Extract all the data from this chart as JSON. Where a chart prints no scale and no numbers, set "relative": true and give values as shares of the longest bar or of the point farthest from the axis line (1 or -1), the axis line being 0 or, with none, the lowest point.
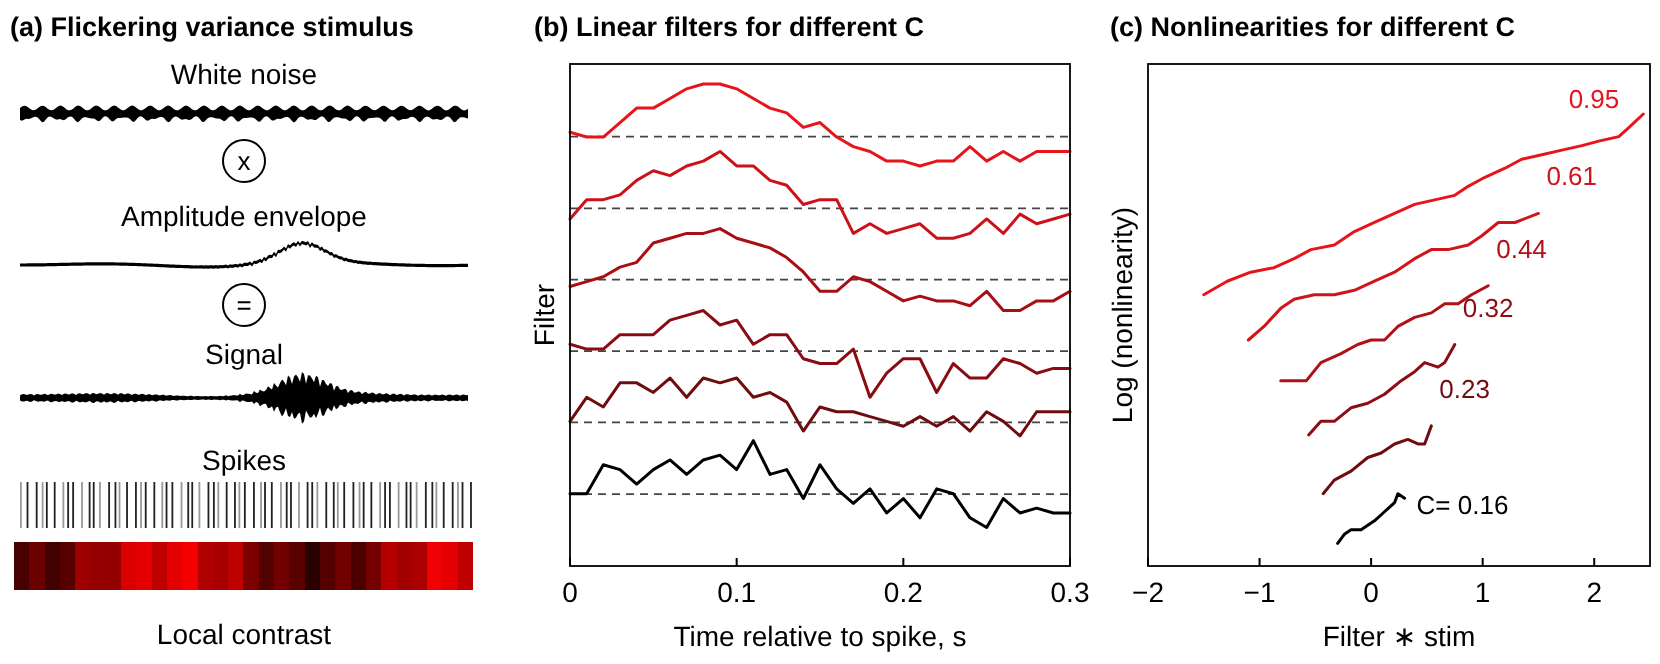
{
  "chart_data": [
    {
      "type": "other",
      "title": "(a) Flickering variance stimulus",
      "annotations": [
        "White noise",
        "x",
        "Amplitude envelope",
        "=",
        "Signal",
        "Spikes",
        "Local contrast"
      ]
    },
    {
      "type": "line",
      "title": "(b) Linear filters for different C",
      "xlabel": "Time relative to spike, s",
      "ylabel": "Filter",
      "relative": true,
      "xlim": [
        0,
        0.3
      ],
      "xticks": [
        0,
        0.1,
        0.2,
        0.3
      ],
      "line_style": "solid",
      "marker": "none",
      "x": [
        0,
        0.01,
        0.02,
        0.03,
        0.04,
        0.05,
        0.06,
        0.07,
        0.08,
        0.09,
        0.1,
        0.11,
        0.12,
        0.13,
        0.14,
        0.15,
        0.16,
        0.17,
        0.18,
        0.19,
        0.2,
        0.21,
        0.22,
        0.23,
        0.24,
        0.25,
        0.26,
        0.27,
        0.28,
        0.29,
        0.3
      ],
      "ref_lines": [
        {
          "axis": "y",
          "value": 0.891,
          "color": "#444444",
          "line_style": "dashed"
        },
        {
          "axis": "y",
          "value": 0.742,
          "color": "#444444",
          "line_style": "dashed"
        },
        {
          "axis": "y",
          "value": 0.594,
          "color": "#444444",
          "line_style": "dashed"
        },
        {
          "axis": "y",
          "value": 0.446,
          "color": "#444444",
          "line_style": "dashed"
        },
        {
          "axis": "y",
          "value": 0.298,
          "color": "#444444",
          "line_style": "dashed"
        },
        {
          "axis": "y",
          "value": 0.149,
          "color": "#444444",
          "line_style": "dashed"
        }
      ],
      "series": [
        {
          "color": "#e8141c",
          "values": [
            0.9,
            0.89,
            0.89,
            0.92,
            0.95,
            0.95,
            0.97,
            0.99,
            1.0,
            1.0,
            0.99,
            0.97,
            0.95,
            0.94,
            0.91,
            0.92,
            0.89,
            0.87,
            0.86,
            0.84,
            0.84,
            0.83,
            0.84,
            0.84,
            0.87,
            0.84,
            0.86,
            0.84,
            0.86,
            0.86,
            0.86
          ]
        },
        {
          "color": "#cc1218",
          "values": [
            0.72,
            0.76,
            0.76,
            0.77,
            0.8,
            0.82,
            0.81,
            0.83,
            0.84,
            0.86,
            0.83,
            0.83,
            0.8,
            0.79,
            0.75,
            0.76,
            0.76,
            0.69,
            0.71,
            0.69,
            0.7,
            0.71,
            0.68,
            0.68,
            0.69,
            0.72,
            0.69,
            0.73,
            0.71,
            0.72,
            0.73
          ]
        },
        {
          "color": "#a80e14",
          "values": [
            0.58,
            0.59,
            0.6,
            0.62,
            0.63,
            0.67,
            0.68,
            0.69,
            0.69,
            0.7,
            0.68,
            0.67,
            0.66,
            0.64,
            0.61,
            0.57,
            0.57,
            0.6,
            0.59,
            0.57,
            0.55,
            0.56,
            0.55,
            0.55,
            0.54,
            0.57,
            0.53,
            0.53,
            0.55,
            0.55,
            0.57
          ]
        },
        {
          "color": "#8a0c12",
          "values": [
            0.46,
            0.45,
            0.45,
            0.48,
            0.48,
            0.48,
            0.51,
            0.52,
            0.53,
            0.5,
            0.51,
            0.46,
            0.48,
            0.48,
            0.43,
            0.42,
            0.42,
            0.45,
            0.35,
            0.4,
            0.43,
            0.43,
            0.36,
            0.42,
            0.39,
            0.39,
            0.43,
            0.42,
            0.4,
            0.41,
            0.41
          ]
        },
        {
          "color": "#6e0c10",
          "values": [
            0.3,
            0.35,
            0.33,
            0.38,
            0.38,
            0.36,
            0.39,
            0.35,
            0.39,
            0.38,
            0.39,
            0.35,
            0.36,
            0.34,
            0.28,
            0.33,
            0.32,
            0.32,
            0.31,
            0.3,
            0.29,
            0.31,
            0.29,
            0.31,
            0.28,
            0.32,
            0.3,
            0.27,
            0.32,
            0.32,
            0.32
          ]
        },
        {
          "color": "#000000",
          "values": [
            0.15,
            0.15,
            0.21,
            0.2,
            0.17,
            0.2,
            0.22,
            0.19,
            0.22,
            0.23,
            0.2,
            0.26,
            0.19,
            0.2,
            0.14,
            0.21,
            0.16,
            0.13,
            0.16,
            0.11,
            0.14,
            0.1,
            0.16,
            0.15,
            0.1,
            0.08,
            0.14,
            0.11,
            0.12,
            0.11,
            0.11
          ]
        }
      ]
    },
    {
      "type": "line",
      "title": "(c) Nonlinearities for different C",
      "xlabel": "Filter ∗ stim",
      "ylabel": "Log (nonlinearity)",
      "relative": true,
      "xlim": [
        -2,
        2.5
      ],
      "xticks": [
        {
          "value": -2,
          "label": "−2"
        },
        {
          "value": -1,
          "label": "−1"
        },
        0,
        1,
        2
      ],
      "line_style": "solid",
      "marker": "none",
      "series": [
        {
          "name": "0.95",
          "color": "#e8141c",
          "x": [
            -1.5,
            -1.29,
            -1.08,
            -0.87,
            -0.69,
            -0.54,
            -0.33,
            -0.15,
            0.03,
            0.21,
            0.39,
            0.57,
            0.75,
            0.87,
            1.02,
            1.2,
            1.35,
            1.53,
            1.71,
            1.89,
            2.04,
            2.22,
            2.31,
            2.44
          ],
          "values": [
            0.6,
            0.63,
            0.65,
            0.66,
            0.68,
            0.7,
            0.71,
            0.74,
            0.76,
            0.78,
            0.8,
            0.81,
            0.82,
            0.84,
            0.86,
            0.88,
            0.9,
            0.91,
            0.92,
            0.93,
            0.94,
            0.95,
            0.97,
            1.0
          ]
        },
        {
          "name": "0.61",
          "color": "#d0141a",
          "x": [
            -1.1,
            -0.96,
            -0.81,
            -0.69,
            -0.51,
            -0.33,
            -0.15,
            0.03,
            0.21,
            0.39,
            0.54,
            0.69,
            0.87,
            0.99,
            1.14,
            1.29,
            1.5
          ],
          "values": [
            0.5,
            0.53,
            0.57,
            0.59,
            0.6,
            0.6,
            0.61,
            0.63,
            0.65,
            0.68,
            0.7,
            0.7,
            0.71,
            0.73,
            0.76,
            0.76,
            0.78
          ]
        },
        {
          "name": "0.44",
          "color": "#b01016",
          "x": [
            -0.81,
            -0.69,
            -0.58,
            -0.45,
            -0.27,
            -0.12,
            0,
            0.12,
            0.24,
            0.39,
            0.54,
            0.66,
            0.78,
            0.9,
            1.05
          ],
          "values": [
            0.41,
            0.41,
            0.41,
            0.45,
            0.47,
            0.49,
            0.5,
            0.5,
            0.53,
            0.55,
            0.56,
            0.58,
            0.58,
            0.6,
            0.62
          ]
        },
        {
          "name": "0.32",
          "color": "#900c12",
          "x": [
            -0.56,
            -0.45,
            -0.33,
            -0.18,
            -0.03,
            0.12,
            0.27,
            0.39,
            0.48,
            0.6,
            0.66,
            0.75
          ],
          "values": [
            0.29,
            0.32,
            0.32,
            0.35,
            0.36,
            0.38,
            0.41,
            0.43,
            0.45,
            0.44,
            0.45,
            0.49
          ]
        },
        {
          "name": "0.23",
          "color": "#6e0c10",
          "x": [
            -0.43,
            -0.33,
            -0.18,
            -0.03,
            0.09,
            0.21,
            0.33,
            0.42,
            0.48,
            0.54
          ],
          "values": [
            0.16,
            0.19,
            0.21,
            0.24,
            0.25,
            0.27,
            0.28,
            0.27,
            0.27,
            0.31
          ]
        },
        {
          "name": "C= 0.16",
          "color": "#000000",
          "x": [
            -0.3,
            -0.24,
            -0.18,
            -0.09,
            0.03,
            0.12,
            0.21,
            0.24,
            0.3
          ],
          "values": [
            0.05,
            0.07,
            0.08,
            0.08,
            0.1,
            0.12,
            0.14,
            0.16,
            0.15
          ]
        }
      ]
    }
  ]
}
